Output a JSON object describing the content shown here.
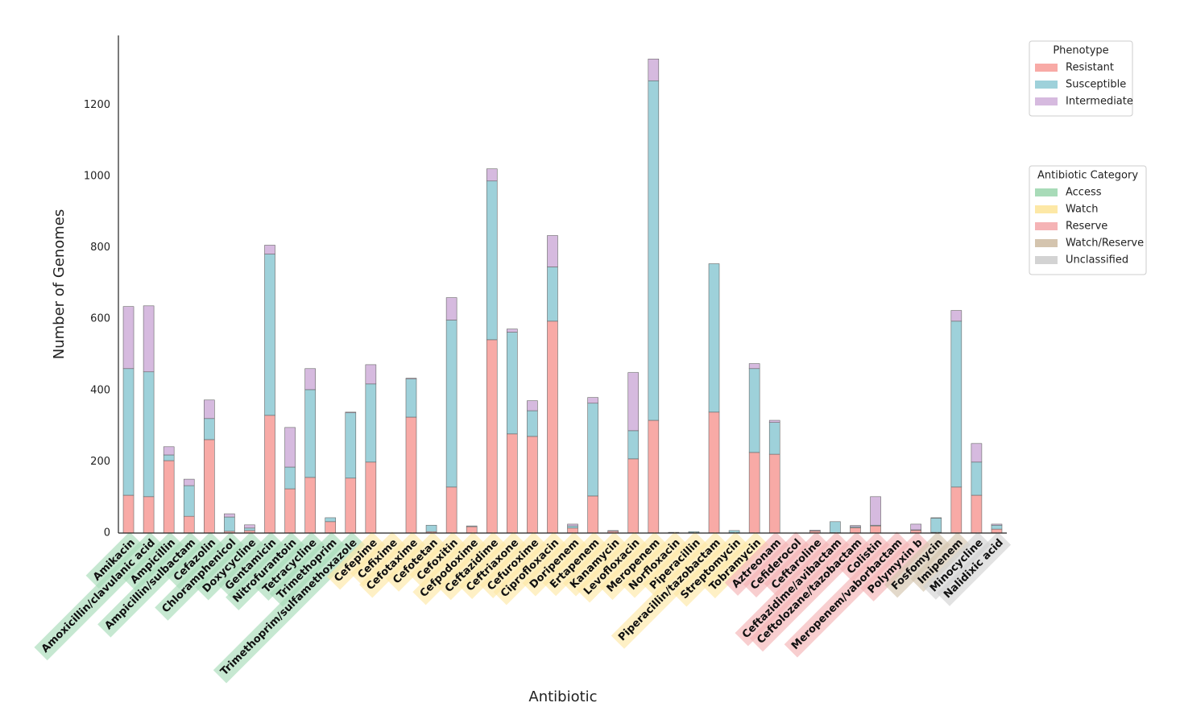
{
  "chart_data": {
    "type": "stacked_bar",
    "x_label": "Antibiotic",
    "y_label": "Number of Genomes",
    "ylim": [
      0,
      1395
    ],
    "yticks": [
      0,
      200,
      400,
      600,
      800,
      1000,
      1200
    ],
    "categories": [
      "Amikacin",
      "Amoxicillin/clavulanic acid",
      "Ampicillin",
      "Ampicillin/sulbactam",
      "Cefazolin",
      "Chloramphenicol",
      "Doxycycline",
      "Gentamicin",
      "Nitrofurantoin",
      "Tetracycline",
      "Trimethoprim",
      "Trimethoprim/sulfamethoxazole",
      "Cefepime",
      "Cefixime",
      "Cefotaxime",
      "Cefotetan",
      "Cefoxitin",
      "Cefpodoxime",
      "Ceftazidime",
      "Ceftriaxone",
      "Cefuroxime",
      "Ciprofloxacin",
      "Doripenem",
      "Ertapenem",
      "Kanamycin",
      "Levofloxacin",
      "Meropenem",
      "Norfloxacin",
      "Piperacillin",
      "Piperacillin/tazobactam",
      "Streptomycin",
      "Tobramycin",
      "Aztreonam",
      "Cefiderocol",
      "Ceftaroline",
      "Ceftazidime/avibactam",
      "Ceftolozane/tazobactam",
      "Colistin",
      "Meropenem/vaborbactam",
      "Polymyxin b",
      "Fosfomycin",
      "Imipenem",
      "Minocycline",
      "Nalidixic acid"
    ],
    "category_group": [
      0,
      0,
      0,
      0,
      0,
      0,
      0,
      0,
      0,
      0,
      0,
      0,
      1,
      1,
      1,
      1,
      1,
      1,
      1,
      1,
      1,
      1,
      1,
      1,
      1,
      1,
      1,
      1,
      1,
      1,
      1,
      1,
      2,
      2,
      2,
      2,
      2,
      2,
      2,
      2,
      3,
      3,
      4,
      4
    ],
    "legend_title": "Phenotype",
    "series": [
      {
        "name": "Resistant",
        "color": "#f8aaa6",
        "values": [
          106,
          102,
          203,
          47,
          262,
          5,
          7,
          330,
          124,
          156,
          32,
          154,
          199,
          0,
          325,
          4,
          129,
          18,
          542,
          278,
          271,
          594,
          14,
          104,
          5,
          208,
          316,
          1,
          1,
          339,
          1,
          226,
          221,
          0,
          6,
          1,
          15,
          20,
          0,
          8,
          2,
          129,
          106,
          11
        ]
      },
      {
        "name": "Susceptible",
        "color": "#9ed1da",
        "values": [
          355,
          350,
          16,
          86,
          59,
          40,
          7,
          452,
          61,
          246,
          11,
          183,
          219,
          0,
          107,
          18,
          468,
          2,
          445,
          285,
          72,
          152,
          6,
          260,
          0,
          79,
          952,
          1,
          3,
          416,
          6,
          235,
          89,
          0,
          0,
          31,
          3,
          2,
          0,
          1,
          40,
          465,
          93,
          11
        ]
      },
      {
        "name": "Intermediate",
        "color": "#d6badf",
        "values": [
          174,
          185,
          23,
          18,
          52,
          9,
          9,
          25,
          111,
          59,
          0,
          2,
          54,
          0,
          2,
          0,
          63,
          0,
          34,
          9,
          28,
          88,
          5,
          16,
          2,
          163,
          61,
          0,
          0,
          0,
          0,
          14,
          6,
          0,
          2,
          0,
          3,
          80,
          0,
          16,
          1,
          30,
          52,
          3
        ]
      }
    ],
    "group_legend": {
      "title": "Antibiotic Category",
      "items": [
        {
          "name": "Access",
          "color": "#a8dbb8"
        },
        {
          "name": "Watch",
          "color": "#fde8a6"
        },
        {
          "name": "Reserve",
          "color": "#f5b3b5"
        },
        {
          "name": "Watch/Reserve",
          "color": "#d4c4ae"
        },
        {
          "name": "Unclassified",
          "color": "#d3d3d3"
        }
      ]
    }
  }
}
